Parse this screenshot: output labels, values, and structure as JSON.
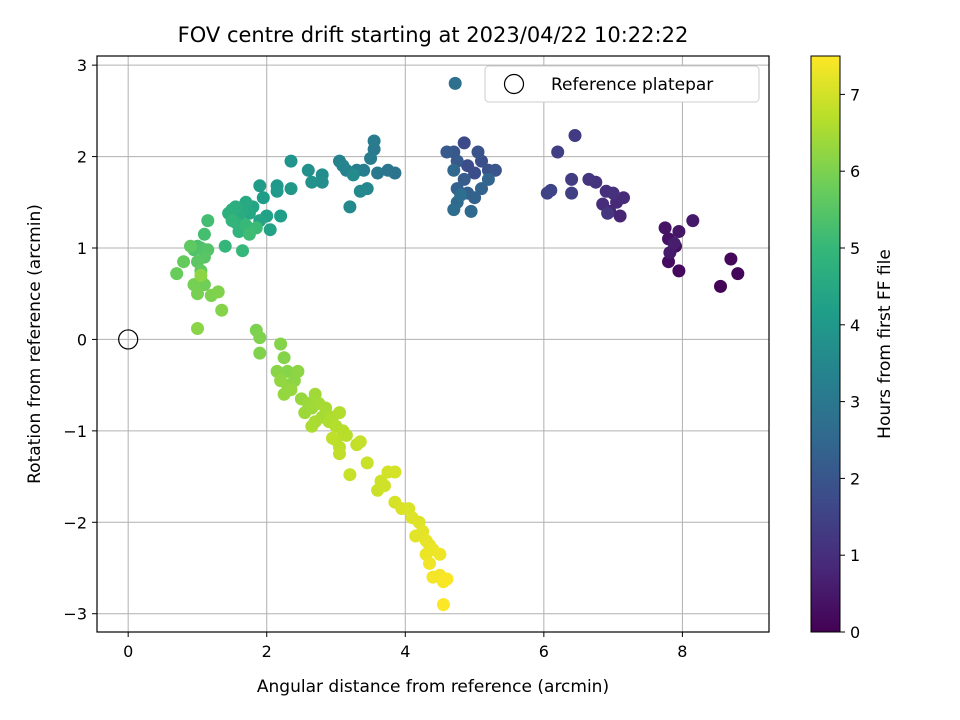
{
  "chart_data": {
    "type": "scatter",
    "title": "FOV centre drift starting at 2023/04/22 10:22:22",
    "xlabel": "Angular distance from reference (arcmin)",
    "ylabel": "Rotation from reference (arcmin)",
    "xlim": [
      -0.45,
      9.25
    ],
    "ylim": [
      -3.2,
      3.1
    ],
    "xticks": [
      0,
      2,
      4,
      6,
      8
    ],
    "yticks": [
      -3,
      -2,
      -1,
      0,
      1,
      2,
      3
    ],
    "grid": true,
    "legend": {
      "label": "Reference platepar",
      "placement": "top-right"
    },
    "reference_point": {
      "x": 0,
      "y": 0
    },
    "colorbar": {
      "label": "Hours from first FF file",
      "range": [
        0,
        7.5
      ],
      "ticks": [
        0,
        1,
        2,
        3,
        4,
        5,
        6,
        7
      ],
      "colormap": [
        "#440154",
        "#482878",
        "#3e4989",
        "#31688e",
        "#26828e",
        "#1f9e89",
        "#35b779",
        "#6ece58",
        "#b5de2b",
        "#fde725"
      ]
    },
    "points": [
      [
        8.55,
        0.58,
        0.05
      ],
      [
        8.8,
        0.72,
        0.1
      ],
      [
        8.7,
        0.88,
        0.15
      ],
      [
        7.95,
        0.75,
        0.2
      ],
      [
        7.8,
        0.85,
        0.25
      ],
      [
        7.9,
        1.02,
        0.3
      ],
      [
        7.8,
        1.1,
        0.35
      ],
      [
        7.75,
        1.22,
        0.4
      ],
      [
        7.95,
        1.18,
        0.45
      ],
      [
        8.15,
        1.3,
        0.5
      ],
      [
        7.82,
        0.95,
        0.55
      ],
      [
        7.88,
        1.05,
        0.6
      ],
      [
        7.1,
        1.35,
        0.75
      ],
      [
        6.95,
        1.4,
        0.8
      ],
      [
        7.05,
        1.5,
        0.85
      ],
      [
        7.15,
        1.55,
        0.9
      ],
      [
        6.85,
        1.48,
        0.95
      ],
      [
        6.9,
        1.62,
        1.0
      ],
      [
        7.0,
        1.6,
        1.05
      ],
      [
        6.75,
        1.72,
        1.1
      ],
      [
        6.65,
        1.75,
        1.15
      ],
      [
        6.92,
        1.38,
        1.2
      ],
      [
        6.45,
        2.23,
        1.3
      ],
      [
        6.4,
        1.75,
        1.35
      ],
      [
        6.2,
        2.05,
        1.4
      ],
      [
        6.4,
        1.6,
        1.45
      ],
      [
        6.05,
        1.6,
        1.5
      ],
      [
        6.1,
        1.63,
        1.55
      ],
      [
        4.85,
        2.15,
        1.7
      ],
      [
        4.9,
        1.9,
        1.75
      ],
      [
        5.0,
        1.82,
        1.8
      ],
      [
        5.1,
        1.95,
        1.85
      ],
      [
        5.2,
        1.85,
        1.9
      ],
      [
        5.05,
        2.05,
        1.95
      ],
      [
        5.3,
        1.85,
        2.0
      ],
      [
        4.7,
        2.05,
        2.05
      ],
      [
        4.75,
        1.95,
        2.1
      ],
      [
        4.6,
        2.05,
        2.15
      ],
      [
        4.85,
        1.75,
        2.2
      ],
      [
        4.9,
        1.6,
        2.25
      ],
      [
        4.75,
        1.65,
        2.3
      ],
      [
        5.0,
        1.55,
        2.35
      ],
      [
        5.1,
        1.65,
        2.4
      ],
      [
        5.2,
        1.75,
        2.45
      ],
      [
        4.7,
        1.85,
        2.5
      ],
      [
        4.95,
        1.4,
        2.55
      ],
      [
        4.75,
        1.5,
        2.6
      ],
      [
        4.7,
        1.42,
        2.65
      ],
      [
        4.8,
        1.58,
        2.7
      ],
      [
        4.72,
        2.8,
        2.75
      ],
      [
        3.85,
        1.82,
        2.9
      ],
      [
        3.75,
        1.85,
        2.95
      ],
      [
        3.6,
        1.82,
        3.0
      ],
      [
        3.55,
        2.08,
        3.05
      ],
      [
        3.5,
        1.98,
        3.1
      ],
      [
        3.55,
        2.17,
        3.15
      ],
      [
        3.4,
        1.85,
        3.2
      ],
      [
        3.3,
        1.85,
        3.25
      ],
      [
        3.15,
        1.85,
        3.3
      ],
      [
        3.05,
        1.95,
        3.35
      ],
      [
        3.1,
        1.9,
        3.4
      ],
      [
        3.45,
        1.65,
        3.45
      ],
      [
        3.35,
        1.62,
        3.5
      ],
      [
        3.2,
        1.45,
        3.55
      ],
      [
        3.25,
        1.8,
        3.6
      ],
      [
        2.8,
        1.8,
        3.65
      ],
      [
        2.8,
        1.72,
        3.7
      ],
      [
        2.6,
        1.85,
        3.75
      ],
      [
        2.65,
        1.72,
        3.8
      ],
      [
        2.35,
        1.95,
        3.9
      ],
      [
        2.35,
        1.65,
        3.95
      ],
      [
        2.15,
        1.68,
        4.0
      ],
      [
        2.15,
        1.62,
        4.05
      ],
      [
        1.9,
        1.68,
        4.1
      ],
      [
        1.95,
        1.55,
        4.15
      ],
      [
        2.2,
        1.35,
        4.2
      ],
      [
        2.0,
        1.35,
        4.25
      ],
      [
        2.05,
        1.2,
        4.3
      ],
      [
        1.9,
        1.3,
        4.35
      ],
      [
        1.8,
        1.45,
        4.4
      ],
      [
        1.75,
        1.38,
        4.45
      ],
      [
        1.7,
        1.5,
        4.5
      ],
      [
        1.65,
        1.4,
        4.55
      ],
      [
        1.6,
        1.35,
        4.6
      ],
      [
        1.55,
        1.45,
        4.65
      ],
      [
        1.5,
        1.42,
        4.7
      ],
      [
        1.45,
        1.38,
        4.75
      ],
      [
        1.55,
        1.28,
        4.8
      ],
      [
        1.6,
        1.18,
        4.85
      ],
      [
        1.5,
        1.3,
        4.9
      ],
      [
        1.4,
        1.02,
        4.95
      ],
      [
        1.65,
        0.97,
        5.0
      ],
      [
        1.7,
        1.25,
        5.05
      ],
      [
        1.85,
        1.22,
        5.1
      ],
      [
        1.75,
        1.15,
        5.15
      ],
      [
        1.15,
        1.3,
        5.2
      ],
      [
        1.1,
        1.15,
        5.25
      ],
      [
        1.0,
        1.02,
        5.3
      ],
      [
        1.05,
        1.0,
        5.35
      ],
      [
        0.95,
        0.98,
        5.4
      ],
      [
        1.15,
        0.98,
        5.45
      ],
      [
        1.1,
        0.9,
        5.5
      ],
      [
        1.0,
        0.85,
        5.55
      ],
      [
        0.9,
        1.02,
        5.6
      ],
      [
        1.05,
        0.75,
        5.65
      ],
      [
        0.8,
        0.85,
        5.7
      ],
      [
        0.7,
        0.72,
        5.75
      ],
      [
        1.05,
        0.65,
        5.8
      ],
      [
        1.1,
        0.6,
        5.85
      ],
      [
        0.95,
        0.6,
        5.9
      ],
      [
        1.0,
        0.5,
        5.95
      ],
      [
        1.2,
        0.48,
        6.0
      ],
      [
        1.3,
        0.52,
        6.05
      ],
      [
        1.35,
        0.32,
        6.1
      ],
      [
        1.0,
        0.12,
        6.15
      ],
      [
        1.05,
        0.7,
        6.2
      ],
      [
        1.85,
        0.1,
        6.0
      ],
      [
        1.9,
        0.02,
        6.02
      ],
      [
        1.9,
        -0.15,
        6.05
      ],
      [
        2.2,
        -0.05,
        6.08
      ],
      [
        2.25,
        -0.2,
        6.1
      ],
      [
        2.3,
        -0.35,
        6.12
      ],
      [
        2.15,
        -0.35,
        6.15
      ],
      [
        2.4,
        -0.45,
        6.18
      ],
      [
        2.45,
        -0.35,
        6.2
      ],
      [
        2.3,
        -0.5,
        6.22
      ],
      [
        2.2,
        -0.45,
        6.25
      ],
      [
        2.25,
        -0.6,
        6.28
      ],
      [
        2.35,
        -0.55,
        6.3
      ],
      [
        2.5,
        -0.65,
        6.32
      ],
      [
        2.6,
        -0.7,
        6.35
      ],
      [
        2.55,
        -0.8,
        6.38
      ],
      [
        2.65,
        -0.75,
        6.4
      ],
      [
        2.7,
        -0.6,
        6.42
      ],
      [
        2.75,
        -0.7,
        6.45
      ],
      [
        2.8,
        -0.85,
        6.48
      ],
      [
        2.85,
        -0.75,
        6.5
      ],
      [
        2.7,
        -0.9,
        6.52
      ],
      [
        2.65,
        -0.95,
        6.55
      ],
      [
        2.9,
        -0.9,
        6.58
      ],
      [
        2.95,
        -0.85,
        6.6
      ],
      [
        3.05,
        -0.8,
        6.62
      ],
      [
        3.0,
        -0.95,
        6.65
      ],
      [
        3.1,
        -1.0,
        6.68
      ],
      [
        3.15,
        -1.05,
        6.7
      ],
      [
        3.0,
        -1.1,
        6.72
      ],
      [
        3.05,
        -1.18,
        6.75
      ],
      [
        2.95,
        -1.08,
        6.78
      ],
      [
        3.05,
        -1.25,
        6.8
      ],
      [
        3.3,
        -1.15,
        6.82
      ],
      [
        3.35,
        -1.12,
        6.85
      ],
      [
        3.2,
        -1.48,
        6.88
      ],
      [
        3.45,
        -1.35,
        6.9
      ],
      [
        3.6,
        -1.65,
        6.92
      ],
      [
        3.65,
        -1.55,
        6.95
      ],
      [
        3.7,
        -1.6,
        6.98
      ],
      [
        3.75,
        -1.45,
        7.0
      ],
      [
        3.85,
        -1.45,
        7.02
      ],
      [
        3.85,
        -1.78,
        7.05
      ],
      [
        3.95,
        -1.85,
        7.08
      ],
      [
        4.05,
        -1.85,
        7.1
      ],
      [
        4.1,
        -1.95,
        7.12
      ],
      [
        4.2,
        -2.0,
        7.15
      ],
      [
        4.15,
        -2.15,
        7.18
      ],
      [
        4.25,
        -2.1,
        7.2
      ],
      [
        4.3,
        -2.2,
        7.22
      ],
      [
        4.35,
        -2.25,
        7.25
      ],
      [
        4.4,
        -2.3,
        7.28
      ],
      [
        4.3,
        -2.35,
        7.3
      ],
      [
        4.5,
        -2.35,
        7.32
      ],
      [
        4.35,
        -2.45,
        7.35
      ],
      [
        4.4,
        -2.6,
        7.38
      ],
      [
        4.5,
        -2.58,
        7.4
      ],
      [
        4.55,
        -2.65,
        7.42
      ],
      [
        4.6,
        -2.62,
        7.45
      ],
      [
        4.55,
        -2.9,
        7.48
      ]
    ]
  }
}
